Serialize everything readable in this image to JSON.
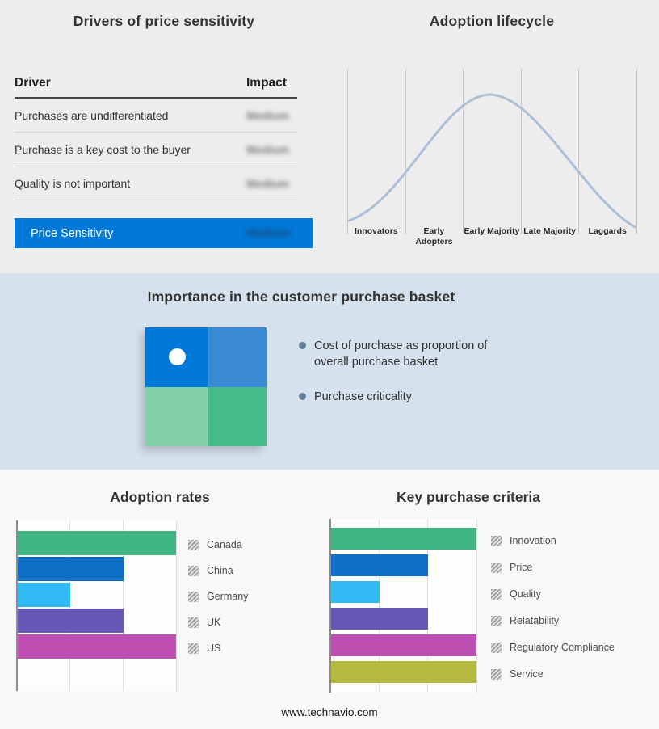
{
  "drivers": {
    "title": "Drivers of price sensitivity",
    "columns": {
      "driver": "Driver",
      "impact": "Impact"
    },
    "rows": [
      {
        "driver": "Purchases are undifferentiated",
        "impact": "Medium"
      },
      {
        "driver": "Purchase is a key cost to the buyer",
        "impact": "Medium"
      },
      {
        "driver": "Quality is not important",
        "impact": "Medium"
      }
    ],
    "summary_label": "Price Sensitivity",
    "summary_impact": "Medium",
    "accent_color": "#0078d7"
  },
  "basket": {
    "title": "Importance in the customer purchase basket",
    "bullets": [
      "Cost of purchase as proportion of overall purchase basket",
      "Purchase criticality"
    ],
    "quadrants": {
      "top_left": "#0078d7",
      "top_right": "#3a8ad6",
      "bottom_left": "#82cfa8",
      "bottom_right": "#45bd88"
    }
  },
  "chart_data": [
    {
      "type": "line",
      "title": "Adoption lifecycle",
      "categories": [
        "Innovators",
        "Early Adopters",
        "Early Majority",
        "Late Majority",
        "Laggards"
      ],
      "description": "Bell-shaped adoption curve rising from Innovators, peaking at Early Majority, falling to Laggards",
      "curve_color": "#abc0d8",
      "grid": true,
      "legend_position": "none"
    },
    {
      "type": "bar",
      "orientation": "horizontal",
      "title": "Adoption rates",
      "categories": [
        "Canada",
        "China",
        "Germany",
        "UK",
        "US"
      ],
      "values": [
        3,
        2,
        1,
        2,
        3
      ],
      "xlim": [
        0,
        3
      ],
      "colors": [
        "#3fb583",
        "#0f6fc6",
        "#30b9f4",
        "#6659b5",
        "#bd4fb3"
      ],
      "grid": true,
      "legend_position": "right"
    },
    {
      "type": "bar",
      "orientation": "horizontal",
      "title": "Key purchase criteria",
      "categories": [
        "Innovation",
        "Price",
        "Quality",
        "Relatability",
        "Regulatory Compliance",
        "Service"
      ],
      "values": [
        3,
        2,
        1,
        2,
        3,
        3
      ],
      "xlim": [
        0,
        3
      ],
      "colors": [
        "#3fb583",
        "#0f6fc6",
        "#30b9f4",
        "#6659b5",
        "#bd4fb3",
        "#b6b93f"
      ],
      "grid": true,
      "legend_position": "right"
    }
  ],
  "footer": "www.technavio.com"
}
